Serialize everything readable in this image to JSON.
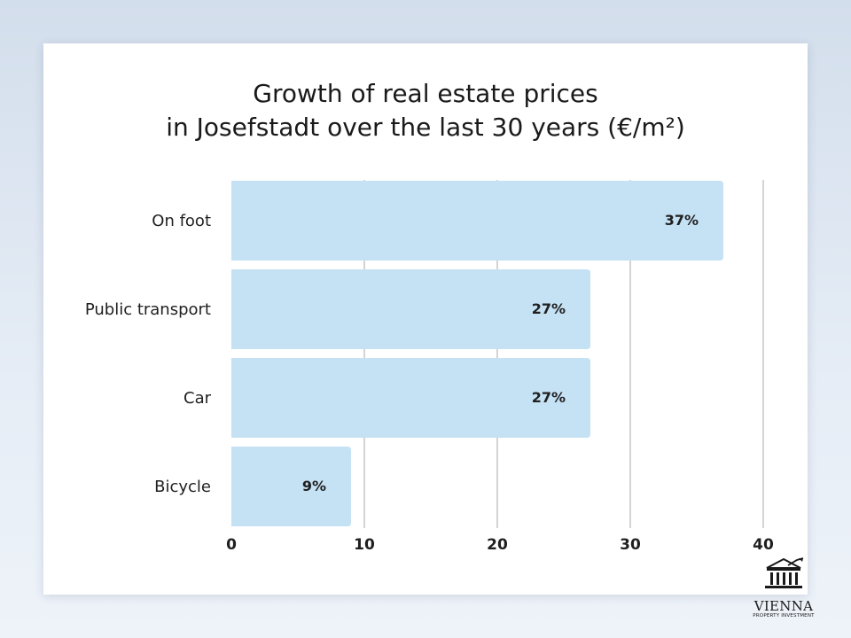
{
  "chart_data": {
    "type": "bar",
    "orientation": "horizontal",
    "title": [
      "Growth of real estate prices",
      "in Josefstadt over the last 30 years (€/m²)"
    ],
    "categories": [
      "On foot",
      "Public transport",
      "Car",
      "Bicycle"
    ],
    "values": [
      37,
      27,
      27,
      9
    ],
    "value_labels": [
      "37%",
      "27%",
      "27%",
      "9%"
    ],
    "xlim": [
      0,
      40
    ],
    "xticks": [
      0,
      10,
      20,
      30,
      40
    ],
    "xlabel": "",
    "ylabel": "",
    "grid": "vertical",
    "bar_color": "#c5e1f4",
    "gridline_color": "#d4d4d4"
  },
  "logo": {
    "name": "VIENNA",
    "subtitle": "PROPERTY INVESTMENT"
  }
}
